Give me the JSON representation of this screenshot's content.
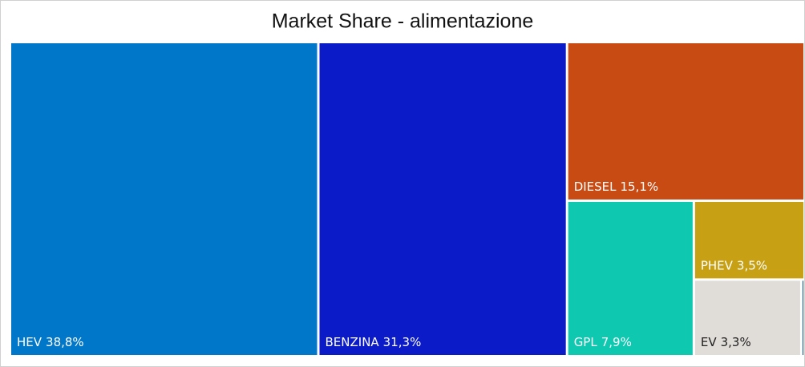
{
  "chart_data": {
    "type": "treemap",
    "title": "Market Share - alimentazione",
    "categories": [
      "HEV",
      "BENZINA",
      "DIESEL",
      "GPL",
      "PHEV",
      "EV",
      null
    ],
    "values": [
      38.8,
      31.3,
      15.1,
      7.9,
      3.5,
      3.3,
      0.1
    ],
    "value_labels": [
      "38,8%",
      "31,3%",
      "15,1%",
      "7,9%",
      "3,5%",
      "3,3%",
      null
    ],
    "colors": [
      "#0077c8",
      "#0c1bc8",
      "#c84b14",
      "#0ec8b0",
      "#c8a014",
      "#e0dcd8",
      "#0c4a78"
    ]
  }
}
